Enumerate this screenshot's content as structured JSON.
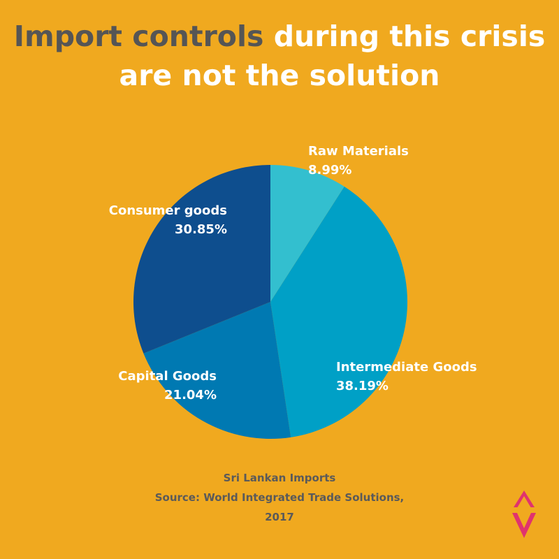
{
  "header": {
    "title_highlight": "Import controls",
    "title_rest": " during this crisis are not the solution"
  },
  "chart_data": {
    "type": "pie",
    "title": "Import controls during this crisis are not the solution",
    "slices": [
      {
        "label": "Raw Materials",
        "value": 8.99,
        "value_label": "8.99%",
        "color": "#33BFCF"
      },
      {
        "label": "Intermediate Goods",
        "value": 38.19,
        "value_label": "38.19%",
        "color": "#00A0C6"
      },
      {
        "label": "Capital Goods",
        "value": 21.04,
        "value_label": "21.04%",
        "color": "#0079B2"
      },
      {
        "label": "Consumer goods",
        "value": 30.85,
        "value_label": "30.85%",
        "color": "#0E4E8E"
      }
    ],
    "start_angle": "12 o'clock",
    "direction": "clockwise"
  },
  "footer": {
    "line1": "Sri Lankan Imports",
    "line2": "Source: World Integrated Trade Solutions,",
    "line3": "2017"
  },
  "colors": {
    "background": "#F0A91F",
    "title_highlight": "#555555",
    "title_text": "#FFFFFF",
    "footer_text": "#5A5A5A",
    "logo": "#E0336E"
  }
}
